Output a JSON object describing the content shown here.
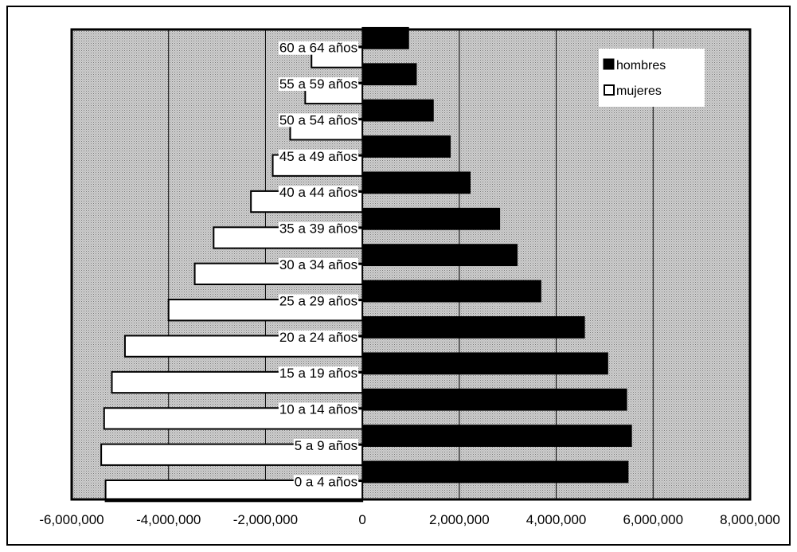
{
  "chart_data": {
    "type": "bar",
    "orientation": "horizontal",
    "stacked_diverging": true,
    "title": "",
    "xlabel": "",
    "ylabel": "",
    "xlim": [
      -6000000,
      8000000
    ],
    "x_ticks": [
      -6000000,
      -4000000,
      -2000000,
      0,
      2000000,
      4000000,
      6000000,
      8000000
    ],
    "x_tick_labels": [
      "-6,000,000",
      "-4,000,000",
      "-2,000,000",
      "0",
      "2,000,000",
      "4,000,000",
      "6,000,000",
      "8,000,000"
    ],
    "grid": true,
    "legend_position": "top-right",
    "categories": [
      "0 a 4 años",
      "5 a 9 años",
      "10 a 14 años",
      "15 a 19 años",
      "20 a 24 años",
      "25 a 29 años",
      "30 a 34 años",
      "35 a 39 años",
      "40 a 44 años",
      "45 a 49 años",
      "50 a 54 años",
      "55 a 59 años",
      "60 a 64 años"
    ],
    "series": [
      {
        "name": "hombres",
        "color": "#000000",
        "values": [
          5480000,
          5550000,
          5450000,
          5060000,
          4580000,
          3680000,
          3190000,
          2830000,
          2220000,
          1810000,
          1460000,
          1110000,
          950000
        ]
      },
      {
        "name": "mujeres",
        "color": "#ffffff",
        "values": [
          -5300000,
          -5390000,
          -5330000,
          -5170000,
          -4900000,
          -4000000,
          -3460000,
          -3070000,
          -2300000,
          -1850000,
          -1490000,
          -1180000,
          -1050000
        ]
      }
    ]
  }
}
